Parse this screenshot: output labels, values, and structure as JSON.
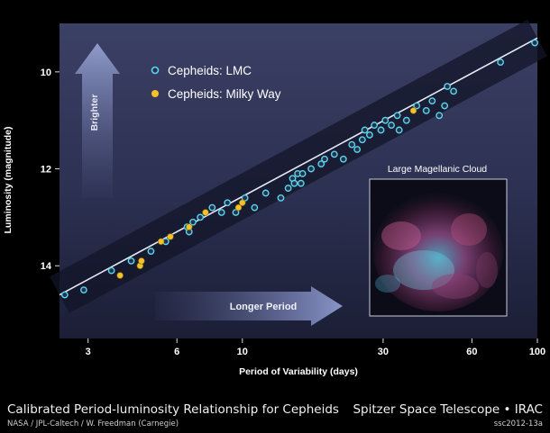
{
  "chart_data": {
    "type": "scatter",
    "xlabel": "Period of Variability (days)",
    "ylabel": "Luminosity (magnitude)",
    "xscale": "log",
    "xlim": [
      2.4,
      100
    ],
    "ylim": [
      15.5,
      9.0
    ],
    "yinverted": true,
    "x_ticks": [
      3,
      6,
      10,
      30,
      60,
      100
    ],
    "y_ticks": [
      10,
      12,
      14
    ],
    "grid": false,
    "legend_position": "top-left",
    "fit_line": {
      "x": [
        2.4,
        100
      ],
      "y": [
        14.6,
        9.3
      ]
    },
    "series": [
      {
        "name": "Cepheids: LMC",
        "color": "#5ad7ea",
        "x": [
          2.5,
          2.9,
          3.6,
          4.2,
          4.9,
          5.5,
          6.5,
          6.6,
          6.8,
          7.2,
          7.9,
          8.5,
          8.9,
          9.5,
          10.2,
          11.0,
          12.0,
          13.5,
          14.3,
          14.8,
          15.0,
          15.4,
          15.8,
          16.0,
          17.1,
          18.5,
          19.0,
          20.5,
          22.0,
          23.5,
          24.5,
          25.5,
          26.0,
          27.0,
          28.0,
          29.5,
          30.5,
          32.0,
          33.5,
          34.0,
          36.0,
          39.0,
          42.0,
          44.0,
          46.5,
          48.5,
          49.5,
          52.0,
          75.0,
          98.0
        ],
        "y": [
          14.6,
          14.5,
          14.1,
          13.9,
          13.7,
          13.5,
          13.2,
          13.3,
          13.1,
          13.0,
          12.8,
          12.9,
          12.7,
          12.9,
          12.6,
          12.8,
          12.5,
          12.6,
          12.4,
          12.2,
          12.3,
          12.1,
          12.3,
          12.1,
          12.0,
          11.9,
          11.8,
          11.7,
          11.8,
          11.5,
          11.6,
          11.4,
          11.2,
          11.3,
          11.1,
          11.2,
          11.0,
          11.1,
          10.9,
          11.2,
          11.0,
          10.7,
          10.8,
          10.6,
          10.9,
          10.7,
          10.3,
          10.4,
          9.8,
          9.4
        ]
      },
      {
        "name": "Cepheids: Milky Way",
        "color": "#f2c22a",
        "x": [
          3.85,
          4.5,
          4.55,
          5.3,
          5.7,
          6.6,
          7.5,
          9.7,
          10.0,
          38.0
        ],
        "y": [
          14.2,
          14.0,
          13.9,
          13.5,
          13.4,
          13.2,
          12.9,
          12.8,
          12.7,
          10.8
        ]
      }
    ],
    "annotations": {
      "up_arrow": "Brighter",
      "right_arrow": "Longer Period",
      "inset_title": "Large Magellanic Cloud"
    }
  },
  "caption": {
    "title": "Calibrated Period-luminosity Relationship for Cepheids",
    "credit": "NASA / JPL-Caltech / W. Freedman (Carnegie)",
    "mission": "Spitzer Space Telescope • IRAC",
    "code": "ssc2012-13a"
  },
  "colors": {
    "panel_top": "#3a3f63",
    "panel_bottom": "#1a1d33",
    "band": "#121528",
    "fit_line": "#e6e9f5",
    "lmc": "#5ad7ea",
    "milky_way": "#f2c22a"
  }
}
